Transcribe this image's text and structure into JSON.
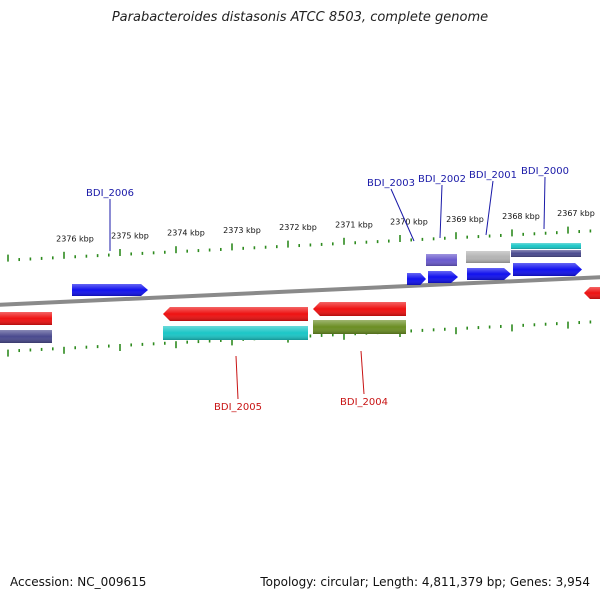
{
  "title": "Parabacteroides distasonis ATCC 8503, complete genome",
  "footer": {
    "accession": "Accession: NC_009615",
    "topology": "Topology: circular; Length: 4,811,379 bp; Genes: 3,954"
  },
  "colors": {
    "backbone": "#8a8a8a",
    "tick": "#2e8b1f",
    "forward_label": "#1a1aa8",
    "reverse_label": "#c81414",
    "red": "#ee1111",
    "blue": "#1111ee",
    "cyan": "#1bc6c6",
    "navy": "#4a4a8e",
    "olive": "#6b8e23",
    "purple": "#6a5acd",
    "gray": "#b4b4b4"
  },
  "kbp_labels": [
    "2376 kbp",
    "2375 kbp",
    "2374 kbp",
    "2373 kbp",
    "2372 kbp",
    "2371 kbp",
    "2370 kbp",
    "2369 kbp",
    "2368 kbp",
    "2367 kbp"
  ],
  "gene_labels": [
    {
      "text": "BDI_2006",
      "strand": "forward"
    },
    {
      "text": "BDI_2003",
      "strand": "forward"
    },
    {
      "text": "BDI_2002",
      "strand": "forward"
    },
    {
      "text": "BDI_2001",
      "strand": "forward"
    },
    {
      "text": "BDI_2000",
      "strand": "forward"
    },
    {
      "text": "BDI_2005",
      "strand": "reverse"
    },
    {
      "text": "BDI_2004",
      "strand": "reverse"
    }
  ],
  "features": [
    {
      "name": "BDI_2006",
      "color": "blue"
    },
    {
      "name": "BDI_2003",
      "color": "blue"
    },
    {
      "name": "BDI_2002",
      "color": "blue"
    },
    {
      "name": "BDI_2002-track",
      "color": "purple"
    },
    {
      "name": "BDI_2001",
      "color": "blue"
    },
    {
      "name": "BDI_2001-track",
      "color": "gray"
    },
    {
      "name": "BDI_2000",
      "color": "blue"
    },
    {
      "name": "BDI_2000-track-a",
      "color": "cyan"
    },
    {
      "name": "BDI_2000-track-b",
      "color": "navy"
    },
    {
      "name": "right-edge-gene",
      "color": "red"
    },
    {
      "name": "left-edge-gene",
      "color": "red"
    },
    {
      "name": "left-edge-track",
      "color": "navy"
    },
    {
      "name": "BDI_2005",
      "color": "red"
    },
    {
      "name": "BDI_2005-track",
      "color": "cyan"
    },
    {
      "name": "BDI_2004",
      "color": "red"
    },
    {
      "name": "BDI_2004-track",
      "color": "olive"
    }
  ]
}
